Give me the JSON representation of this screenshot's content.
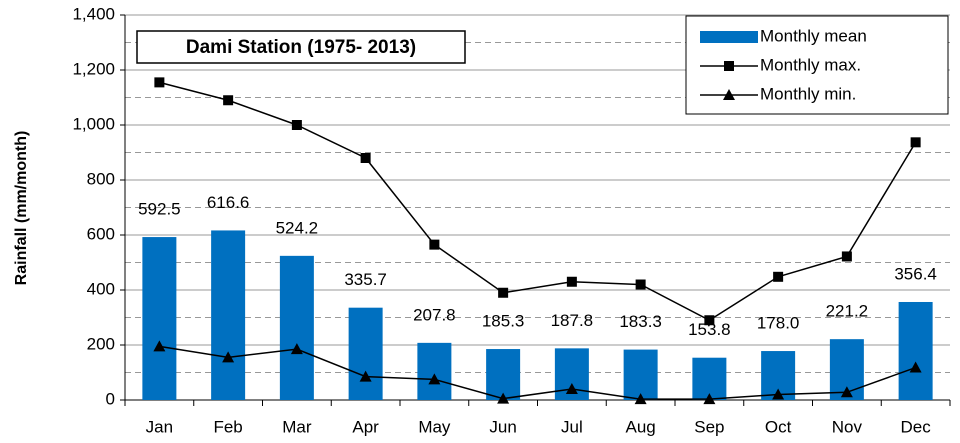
{
  "chart_data": {
    "type": "bar",
    "title": "Dami Station (1975- 2013)",
    "y_label": "Rainfall (mm/month)",
    "categories": [
      "Jan",
      "Feb",
      "Mar",
      "Apr",
      "May",
      "Jun",
      "Jul",
      "Aug",
      "Sep",
      "Oct",
      "Nov",
      "Dec"
    ],
    "series": [
      {
        "name": "Monthly mean",
        "type": "bar",
        "color": "#0070c0",
        "values": [
          592.5,
          616.6,
          524.2,
          335.7,
          207.8,
          185.3,
          187.8,
          183.3,
          153.8,
          178.0,
          221.2,
          356.4
        ],
        "value_labels": [
          "592.5",
          "616.6",
          "524.2",
          "335.7",
          "207.8",
          "185.3",
          "187.8",
          "183.3",
          "153.8",
          "178.0",
          "221.2",
          "356.4"
        ]
      },
      {
        "name": "Monthly max.",
        "type": "line",
        "marker": "square",
        "color": "#000000",
        "values": [
          1155,
          1090,
          1000,
          880,
          565,
          390,
          430,
          420,
          290,
          448,
          522,
          937
        ]
      },
      {
        "name": "Monthly min.",
        "type": "line",
        "marker": "triangle",
        "color": "#000000",
        "values": [
          195,
          155,
          185,
          85,
          75,
          5,
          40,
          3,
          3,
          20,
          28,
          118
        ]
      }
    ],
    "ylim": [
      0,
      1400
    ],
    "yticks": [
      0,
      {
        "value": 200,
        "label": "200"
      },
      {
        "value": 400,
        "label": "400"
      },
      {
        "value": 600,
        "label": "600"
      },
      {
        "value": 800,
        "label": "800"
      },
      {
        "value": 1000,
        "label": "1,000"
      },
      {
        "value": 1200,
        "label": "1,200"
      },
      {
        "value": 1400,
        "label": "1,400"
      }
    ],
    "minor_grid": [
      100,
      300,
      500,
      700,
      900,
      1100,
      1300
    ],
    "grid": true,
    "legend": "top-right"
  }
}
